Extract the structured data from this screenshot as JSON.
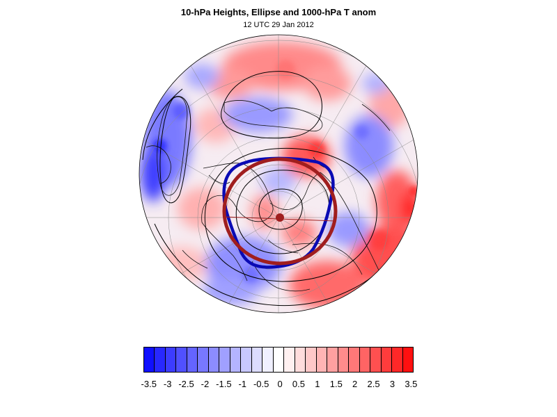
{
  "title": "10-hPa Heights, Ellipse and 1000-hPa T anom",
  "subtitle": "12 UTC 29 Jan 2012",
  "colorbar": {
    "labels": [
      "-3.5",
      "-3",
      "-2.5",
      "-2",
      "-1.5",
      "-1",
      "-0.5",
      "0",
      "0.5",
      "1",
      "1.5",
      "2",
      "2.5",
      "3",
      "3.5"
    ],
    "colors": [
      "#1010ff",
      "#2828ff",
      "#3c3cff",
      "#5050ff",
      "#6464ff",
      "#7878ff",
      "#8c8cff",
      "#a0a0ff",
      "#b4b4ff",
      "#c8c8ff",
      "#dcdcff",
      "#f0f0ff",
      "#ffffff",
      "#fff0f0",
      "#ffdcdc",
      "#ffc8c8",
      "#ffb4b4",
      "#ffa0a0",
      "#ff8c8c",
      "#ff7878",
      "#ff6464",
      "#ff5050",
      "#ff3c3c",
      "#ff2828",
      "#ff1010"
    ]
  },
  "map": {
    "projection": "polar-stereographic-north",
    "ellipse_colors": {
      "blue": "#0a0ab4",
      "red": "#a01e1e"
    }
  }
}
